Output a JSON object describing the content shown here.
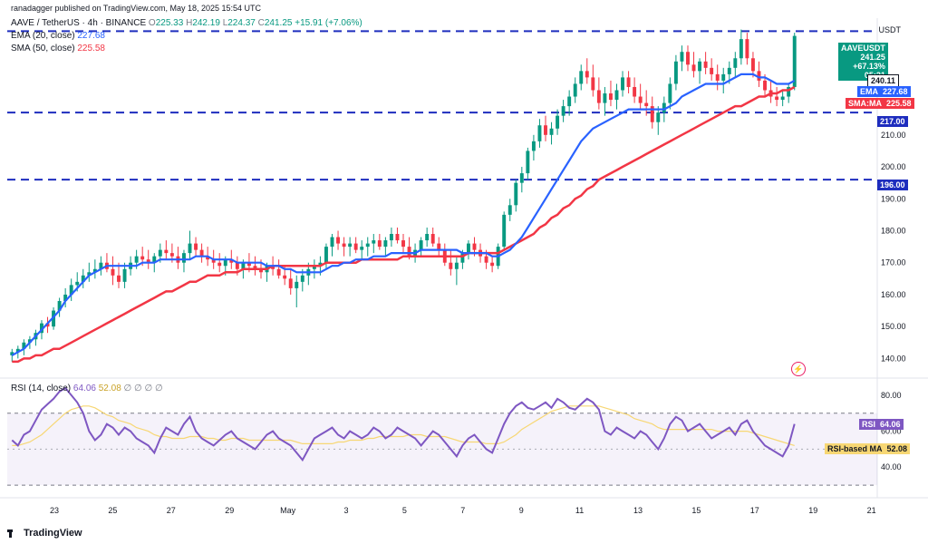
{
  "header": {
    "text": "ranadagger published on TradingView.com, May 18, 2025 15:54 UTC"
  },
  "legend": {
    "symbol": "AAVE / TetherUS · 4h · BINANCE",
    "o_label": "O",
    "o": "225.33",
    "h_label": "H",
    "h": "242.19",
    "l_label": "L",
    "l": "224.37",
    "c_label": "C",
    "c": "241.25",
    "chg": "+15.91 (+7.06%)",
    "ema_label": "EMA (20, close)",
    "ema_value": "227.68",
    "sma_label": "SMA (50, close)",
    "sma_value": "225.58"
  },
  "rsi_legend": {
    "label": "RSI (14, close)",
    "rsi": "64.06",
    "ma": "52.08",
    "extra": "∅ ∅ ∅ ∅"
  },
  "currency": "USDT",
  "price_tags": {
    "symbol": "AAVEUSDT",
    "price": "241.25",
    "pct": "+67.13%",
    "time": "05:21",
    "high": "240.11",
    "ema_label": "EMA",
    "ema": "227.68",
    "sma_label": "SMA:MA",
    "sma": "225.58",
    "support1": "217.00",
    "support2": "196.00",
    "rsi_label": "RSI",
    "rsi": "64.06",
    "rsi_ma_label": "RSI-based MA",
    "rsi_ma": "52.08"
  },
  "brand": "TradingView",
  "colors": {
    "up": "#089981",
    "down": "#f23645",
    "ema": "#2962ff",
    "sma": "#f23645",
    "level": "#1e2dbe",
    "rsi": "#7e57c2",
    "rsi_ma": "#f7d774"
  },
  "chart_data": {
    "type": "candlestick",
    "price_axis": {
      "ticks": [
        140,
        150,
        160,
        170,
        180,
        190,
        200,
        210,
        220
      ],
      "range": [
        135,
        246
      ]
    },
    "time_axis": {
      "ticks": [
        "23",
        "25",
        "27",
        "29",
        "May",
        "3",
        "5",
        "7",
        "9",
        "11",
        "13",
        "15",
        "17",
        "19",
        "21"
      ]
    },
    "horizontal_levels": [
      242.5,
      217.0,
      196.0
    ],
    "candles_ohlc": [
      [
        141,
        143,
        139,
        142
      ],
      [
        142,
        144,
        140,
        143
      ],
      [
        143,
        146,
        141,
        145
      ],
      [
        145,
        147,
        143,
        146
      ],
      [
        146,
        149,
        144,
        148
      ],
      [
        148,
        152,
        146,
        151
      ],
      [
        151,
        153,
        148,
        150
      ],
      [
        150,
        156,
        149,
        155
      ],
      [
        155,
        159,
        153,
        158
      ],
      [
        158,
        162,
        156,
        160
      ],
      [
        160,
        165,
        158,
        163
      ],
      [
        163,
        167,
        161,
        164
      ],
      [
        164,
        168,
        162,
        166
      ],
      [
        166,
        170,
        164,
        167
      ],
      [
        167,
        171,
        165,
        168
      ],
      [
        168,
        172,
        166,
        170
      ],
      [
        170,
        173,
        167,
        168
      ],
      [
        168,
        172,
        163,
        166
      ],
      [
        166,
        170,
        162,
        164
      ],
      [
        164,
        170,
        162,
        168
      ],
      [
        168,
        172,
        166,
        170
      ],
      [
        170,
        174,
        168,
        172
      ],
      [
        172,
        175,
        169,
        171
      ],
      [
        171,
        174,
        168,
        170
      ],
      [
        170,
        173,
        167,
        172
      ],
      [
        172,
        176,
        170,
        174
      ],
      [
        174,
        177,
        171,
        173
      ],
      [
        173,
        176,
        170,
        172
      ],
      [
        172,
        175,
        168,
        170
      ],
      [
        170,
        174,
        167,
        173
      ],
      [
        173,
        180,
        171,
        176
      ],
      [
        176,
        178,
        172,
        174
      ],
      [
        174,
        176,
        170,
        172
      ],
      [
        172,
        175,
        169,
        171
      ],
      [
        171,
        174,
        168,
        170
      ],
      [
        170,
        173,
        167,
        169
      ],
      [
        169,
        172,
        166,
        171
      ],
      [
        171,
        174,
        168,
        170
      ],
      [
        170,
        172,
        166,
        168
      ],
      [
        168,
        171,
        165,
        170
      ],
      [
        170,
        173,
        167,
        169
      ],
      [
        169,
        172,
        166,
        168
      ],
      [
        168,
        171,
        165,
        167
      ],
      [
        167,
        170,
        164,
        169
      ],
      [
        169,
        172,
        166,
        168
      ],
      [
        168,
        171,
        165,
        166
      ],
      [
        166,
        169,
        163,
        165
      ],
      [
        165,
        168,
        160,
        162
      ],
      [
        162,
        166,
        156,
        164
      ],
      [
        164,
        168,
        161,
        166
      ],
      [
        166,
        170,
        163,
        168
      ],
      [
        168,
        171,
        165,
        169
      ],
      [
        169,
        172,
        166,
        170
      ],
      [
        170,
        176,
        168,
        175
      ],
      [
        175,
        179,
        172,
        178
      ],
      [
        178,
        180,
        174,
        176
      ],
      [
        176,
        178,
        172,
        175
      ],
      [
        175,
        178,
        172,
        176
      ],
      [
        176,
        178,
        173,
        174
      ],
      [
        174,
        177,
        171,
        175
      ],
      [
        175,
        178,
        172,
        176
      ],
      [
        176,
        179,
        173,
        177
      ],
      [
        177,
        179,
        174,
        175
      ],
      [
        175,
        178,
        172,
        177
      ],
      [
        177,
        181,
        175,
        179
      ],
      [
        179,
        181,
        176,
        177
      ],
      [
        177,
        179,
        173,
        175
      ],
      [
        175,
        178,
        171,
        172
      ],
      [
        172,
        176,
        170,
        174
      ],
      [
        174,
        178,
        172,
        177
      ],
      [
        177,
        181,
        175,
        179
      ],
      [
        179,
        181,
        175,
        176
      ],
      [
        176,
        178,
        172,
        174
      ],
      [
        174,
        176,
        169,
        170
      ],
      [
        170,
        174,
        166,
        168
      ],
      [
        168,
        172,
        163,
        170
      ],
      [
        170,
        174,
        168,
        173
      ],
      [
        173,
        177,
        171,
        176
      ],
      [
        176,
        178,
        172,
        174
      ],
      [
        174,
        176,
        170,
        172
      ],
      [
        172,
        174,
        168,
        170
      ],
      [
        170,
        172,
        167,
        169
      ],
      [
        169,
        176,
        168,
        175
      ],
      [
        175,
        186,
        174,
        185
      ],
      [
        185,
        190,
        183,
        188
      ],
      [
        188,
        196,
        186,
        195
      ],
      [
        195,
        200,
        192,
        198
      ],
      [
        198,
        206,
        196,
        205
      ],
      [
        205,
        210,
        202,
        208
      ],
      [
        208,
        215,
        206,
        213
      ],
      [
        213,
        216,
        208,
        210
      ],
      [
        210,
        214,
        207,
        212
      ],
      [
        212,
        218,
        210,
        216
      ],
      [
        216,
        221,
        214,
        219
      ],
      [
        219,
        224,
        216,
        222
      ],
      [
        222,
        228,
        220,
        226
      ],
      [
        226,
        232,
        224,
        230
      ],
      [
        230,
        234,
        226,
        228
      ],
      [
        228,
        232,
        222,
        224
      ],
      [
        224,
        228,
        218,
        220
      ],
      [
        220,
        225,
        216,
        223
      ],
      [
        223,
        227,
        219,
        221
      ],
      [
        221,
        226,
        218,
        224
      ],
      [
        224,
        230,
        222,
        228
      ],
      [
        228,
        230,
        223,
        225
      ],
      [
        225,
        228,
        220,
        222
      ],
      [
        222,
        226,
        218,
        220
      ],
      [
        220,
        224,
        216,
        219
      ],
      [
        219,
        222,
        212,
        214
      ],
      [
        214,
        219,
        210,
        217
      ],
      [
        217,
        222,
        214,
        220
      ],
      [
        220,
        228,
        218,
        226
      ],
      [
        226,
        235,
        224,
        233
      ],
      [
        233,
        238,
        230,
        236
      ],
      [
        236,
        238,
        230,
        232
      ],
      [
        232,
        236,
        228,
        230
      ],
      [
        230,
        234,
        226,
        233
      ],
      [
        233,
        236,
        229,
        231
      ],
      [
        231,
        234,
        227,
        229
      ],
      [
        229,
        232,
        224,
        227
      ],
      [
        227,
        231,
        223,
        229
      ],
      [
        229,
        233,
        226,
        231
      ],
      [
        231,
        236,
        228,
        234
      ],
      [
        234,
        243,
        232,
        240
      ],
      [
        240,
        242,
        232,
        234
      ],
      [
        234,
        236,
        228,
        230
      ],
      [
        230,
        233,
        225,
        227
      ],
      [
        227,
        229,
        222,
        224
      ],
      [
        224,
        227,
        220,
        222
      ],
      [
        222,
        225,
        219,
        221
      ],
      [
        221,
        224,
        219,
        222
      ],
      [
        222,
        226,
        220,
        225
      ],
      [
        225,
        242,
        224,
        241
      ]
    ],
    "ema20": [
      141,
      142,
      143,
      145,
      147,
      149,
      151,
      153,
      155,
      158,
      160,
      162,
      164,
      166,
      167,
      168,
      169,
      169,
      169,
      169,
      169,
      169,
      170,
      170,
      170,
      171,
      171,
      171,
      171,
      171,
      171,
      172,
      172,
      172,
      171,
      171,
      171,
      171,
      170,
      170,
      170,
      170,
      170,
      169,
      169,
      169,
      168,
      168,
      167,
      167,
      167,
      167,
      167,
      168,
      169,
      169,
      170,
      170,
      171,
      171,
      171,
      172,
      172,
      172,
      173,
      173,
      173,
      173,
      173,
      174,
      174,
      174,
      174,
      174,
      174,
      174,
      173,
      173,
      173,
      173,
      173,
      172,
      172,
      173,
      174,
      176,
      178,
      181,
      184,
      187,
      190,
      193,
      196,
      199,
      202,
      205,
      208,
      210,
      212,
      213,
      214,
      215,
      216,
      217,
      218,
      218,
      218,
      218,
      218,
      218,
      218,
      219,
      220,
      222,
      223,
      224,
      225,
      226,
      226,
      226,
      226,
      227,
      228,
      229,
      229,
      229,
      228,
      228,
      227,
      226,
      226,
      226,
      227
    ],
    "sma50": [
      139,
      139,
      140,
      140,
      141,
      141,
      142,
      143,
      143,
      144,
      145,
      146,
      147,
      148,
      149,
      150,
      151,
      152,
      153,
      154,
      155,
      156,
      157,
      158,
      159,
      160,
      161,
      161,
      162,
      163,
      164,
      164,
      165,
      166,
      166,
      166,
      167,
      167,
      167,
      168,
      168,
      168,
      168,
      168,
      169,
      169,
      169,
      169,
      169,
      169,
      169,
      169,
      169,
      170,
      170,
      170,
      170,
      170,
      170,
      171,
      171,
      171,
      171,
      171,
      171,
      171,
      172,
      172,
      172,
      172,
      172,
      172,
      172,
      172,
      172,
      172,
      172,
      173,
      173,
      173,
      173,
      173,
      173,
      174,
      175,
      176,
      177,
      178,
      179,
      181,
      182,
      184,
      185,
      187,
      188,
      190,
      191,
      193,
      194,
      196,
      197,
      198,
      199,
      200,
      201,
      202,
      203,
      204,
      205,
      206,
      207,
      208,
      209,
      210,
      211,
      212,
      213,
      214,
      215,
      216,
      217,
      218,
      219,
      219,
      220,
      221,
      222,
      222,
      223,
      223,
      224,
      224,
      225
    ],
    "rsi_axis": {
      "ticks": [
        40,
        60,
        80
      ],
      "range": [
        25,
        88
      ],
      "band": [
        30,
        70
      ]
    },
    "rsi": [
      55,
      52,
      58,
      60,
      66,
      72,
      75,
      78,
      82,
      84,
      80,
      76,
      70,
      60,
      55,
      58,
      64,
      62,
      58,
      62,
      60,
      56,
      54,
      52,
      48,
      56,
      62,
      60,
      58,
      64,
      68,
      60,
      56,
      54,
      52,
      55,
      58,
      60,
      56,
      54,
      52,
      50,
      54,
      58,
      60,
      56,
      54,
      52,
      48,
      44,
      50,
      56,
      58,
      60,
      62,
      58,
      56,
      60,
      58,
      56,
      58,
      62,
      60,
      56,
      58,
      62,
      60,
      58,
      56,
      52,
      56,
      60,
      58,
      54,
      50,
      46,
      52,
      56,
      58,
      54,
      50,
      48,
      56,
      64,
      70,
      74,
      76,
      73,
      72,
      74,
      76,
      73,
      78,
      76,
      73,
      72,
      75,
      78,
      76,
      72,
      60,
      58,
      62,
      60,
      58,
      56,
      60,
      58,
      54,
      50,
      56,
      64,
      68,
      66,
      60,
      62,
      64,
      60,
      56,
      58,
      60,
      62,
      58,
      64,
      66,
      60,
      56,
      52,
      50,
      48,
      46,
      52,
      64
    ],
    "rsi_ma": [
      52,
      52,
      53,
      54,
      56,
      58,
      61,
      64,
      67,
      70,
      72,
      73,
      74,
      74,
      73,
      71,
      69,
      68,
      66,
      65,
      64,
      62,
      61,
      60,
      58,
      57,
      57,
      56,
      56,
      56,
      57,
      57,
      57,
      56,
      56,
      55,
      55,
      56,
      56,
      56,
      55,
      55,
      55,
      55,
      55,
      55,
      55,
      55,
      54,
      53,
      53,
      53,
      53,
      53,
      53,
      54,
      54,
      55,
      55,
      55,
      56,
      56,
      57,
      57,
      57,
      57,
      57,
      58,
      58,
      58,
      57,
      57,
      57,
      57,
      56,
      55,
      54,
      54,
      54,
      54,
      53,
      53,
      53,
      54,
      56,
      58,
      61,
      63,
      65,
      67,
      69,
      71,
      72,
      73,
      74,
      74,
      74,
      74,
      74,
      74,
      73,
      72,
      71,
      70,
      69,
      67,
      66,
      65,
      64,
      62,
      61,
      61,
      61,
      61,
      61,
      61,
      61,
      61,
      61,
      60,
      60,
      60,
      60,
      60,
      60,
      59,
      58,
      57,
      56,
      55,
      54,
      53,
      52
    ]
  }
}
